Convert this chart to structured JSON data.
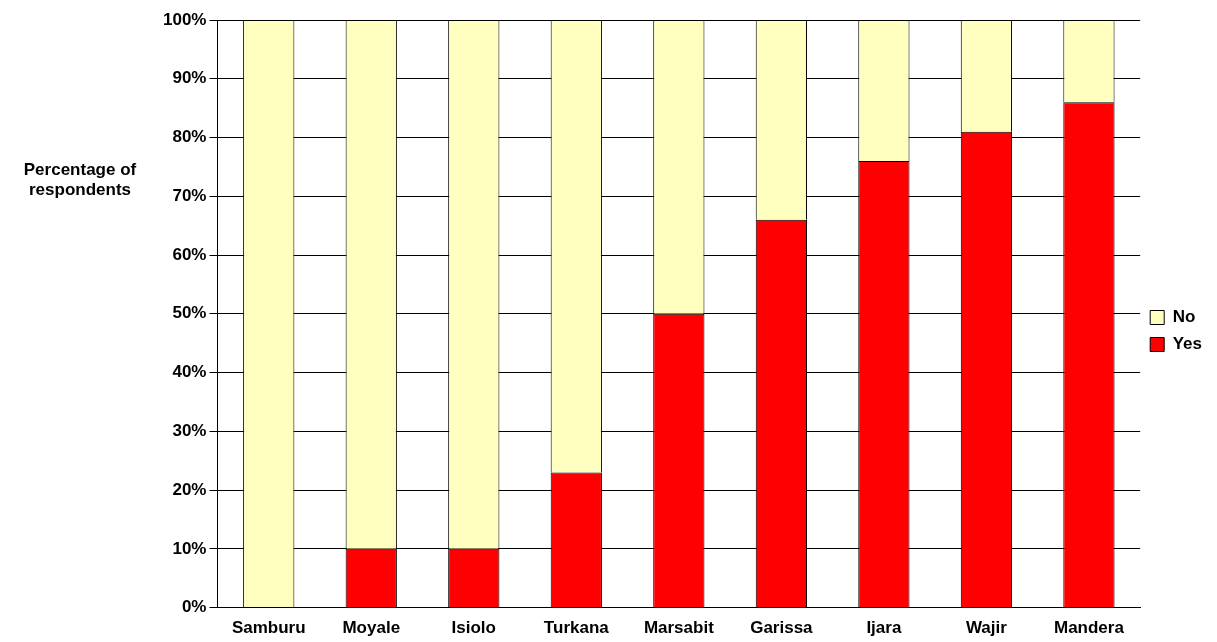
{
  "chart_data": {
    "type": "bar",
    "stacked": true,
    "ylabel": "Percentage of respondents",
    "categories": [
      "Samburu",
      "Moyale",
      "Isiolo",
      "Turkana",
      "Marsabit",
      "Garissa",
      "Ijara",
      "Wajir",
      "Mandera"
    ],
    "series": [
      {
        "name": "Yes",
        "color": "#ff0000",
        "values": [
          0,
          10,
          10,
          23,
          50,
          66,
          76,
          81,
          86
        ]
      },
      {
        "name": "No",
        "color": "#ffffc0",
        "values": [
          100,
          90,
          90,
          77,
          50,
          34,
          24,
          19,
          14
        ]
      }
    ],
    "ylim": [
      0,
      100
    ],
    "yticks": [
      {
        "value": 0,
        "label": "0%"
      },
      {
        "value": 10,
        "label": "10%"
      },
      {
        "value": 20,
        "label": "20%"
      },
      {
        "value": 30,
        "label": "30%"
      },
      {
        "value": 40,
        "label": "40%"
      },
      {
        "value": 50,
        "label": "50%"
      },
      {
        "value": 60,
        "label": "60%"
      },
      {
        "value": 70,
        "label": "70%"
      },
      {
        "value": 80,
        "label": "80%"
      },
      {
        "value": 90,
        "label": "90%"
      },
      {
        "value": 100,
        "label": "100%"
      }
    ],
    "grid": "y",
    "legend": "right"
  }
}
